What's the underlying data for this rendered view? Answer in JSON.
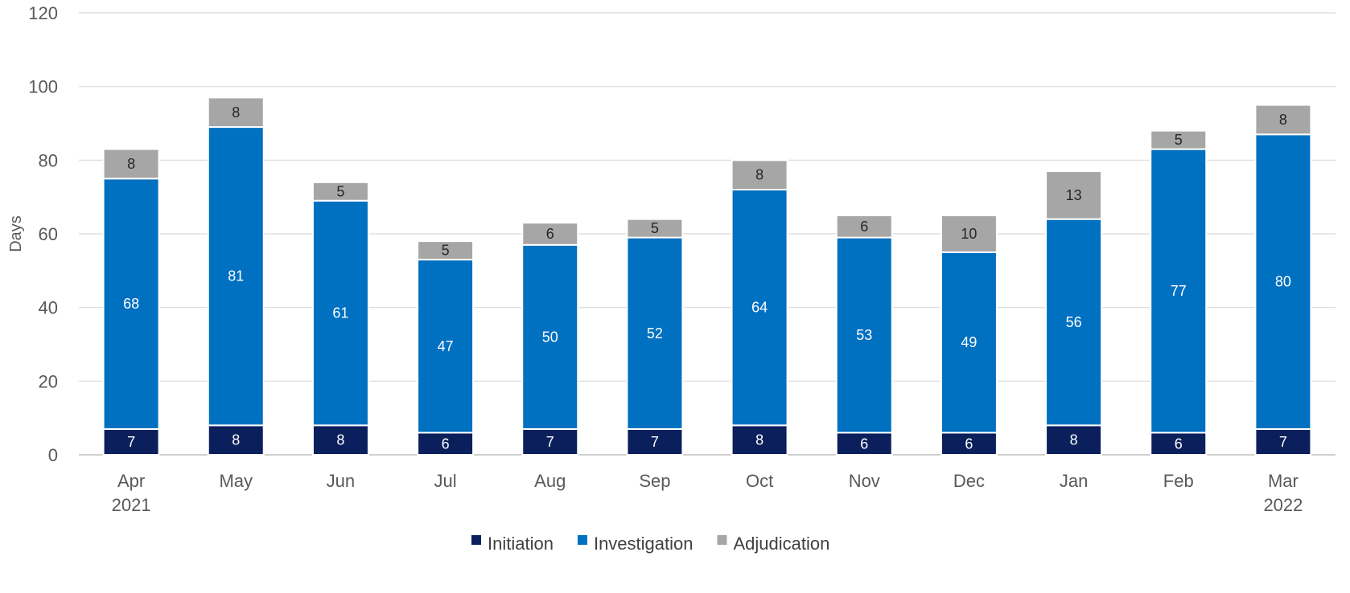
{
  "chart_data": {
    "type": "bar",
    "stacked": true,
    "ylabel": "Days",
    "ylim": [
      0,
      120
    ],
    "yticks": [
      0,
      20,
      40,
      60,
      80,
      100,
      120
    ],
    "grid": true,
    "legend_position": "bottom",
    "categories": [
      [
        "Apr",
        "2021"
      ],
      [
        "May"
      ],
      [
        "Jun"
      ],
      [
        "Jul"
      ],
      [
        "Aug"
      ],
      [
        "Sep"
      ],
      [
        "Oct"
      ],
      [
        "Nov"
      ],
      [
        "Dec"
      ],
      [
        "Jan"
      ],
      [
        "Feb"
      ],
      [
        "Mar",
        "2022"
      ]
    ],
    "series": [
      {
        "name": "Initiation",
        "color": "#0b1f5c",
        "label_color": "#ffffff",
        "values": [
          7,
          8,
          8,
          6,
          7,
          7,
          8,
          6,
          6,
          8,
          6,
          7
        ]
      },
      {
        "name": "Investigation",
        "color": "#0070c0",
        "label_color": "#ffffff",
        "values": [
          68,
          81,
          61,
          47,
          50,
          52,
          64,
          53,
          49,
          56,
          77,
          80
        ]
      },
      {
        "name": "Adjudication",
        "color": "#a6a6a6",
        "label_color": "#262626",
        "values": [
          8,
          8,
          5,
          5,
          6,
          5,
          8,
          6,
          10,
          13,
          5,
          8
        ]
      }
    ]
  }
}
